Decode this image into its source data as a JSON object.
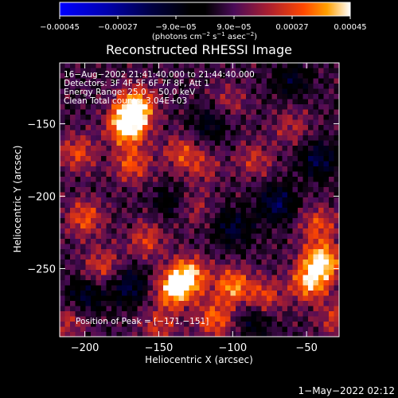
{
  "chart_data": {
    "type": "heatmap",
    "title": "Reconstructed RHESSI Image",
    "xlabel": "Heliocentric X (arcsec)",
    "ylabel": "Heliocentric Y (arcsec)",
    "xlim": [
      -217,
      -28
    ],
    "ylim": [
      -297,
      -108
    ],
    "x_ticks": [
      -200,
      -150,
      -100,
      -50
    ],
    "x_tick_labels": [
      "−200",
      "−150",
      "−100",
      "−50"
    ],
    "y_ticks": [
      -150,
      -200,
      -250
    ],
    "y_tick_labels": [
      "−150",
      "−200",
      "−250"
    ],
    "colorbar": {
      "range": [
        -0.00045,
        0.00045
      ],
      "tick_values": [
        -0.00045,
        -0.00027,
        -9e-05,
        9e-05,
        0.00027,
        0.00045
      ],
      "tick_labels": [
        "−0.00045",
        "−0.00027",
        "−9.0e−05",
        "9.0e−05",
        "0.00027",
        "0.00045"
      ],
      "units_prefix": "(photons cm",
      "units_exp1": "−2",
      "units_mid": " s",
      "units_exp2": "−1",
      "units_mid2": " asec",
      "units_exp3": "−2",
      "units_suffix": ")"
    },
    "annotations": [
      "16−Aug−2002 21:41:40.000 to 21:44:40.000",
      "Detectors: 3F 4F 5F 6F 7F 8F, Att 1",
      "Energy Range: 25.0 − 50.0 keV",
      "Clean     Total counts: 3.04E+03"
    ],
    "peak_label": "Position of Peak = [−171,−151]",
    "peak": [
      -171,
      -151
    ],
    "hot_spots": [
      {
        "x": -171,
        "y": -151,
        "amp": 0.00045
      },
      {
        "x": -165,
        "y": -137,
        "amp": 0.00032
      },
      {
        "x": -168,
        "y": -178,
        "amp": 0.00022
      },
      {
        "x": -205,
        "y": -170,
        "amp": 0.0002
      },
      {
        "x": -200,
        "y": -215,
        "amp": 0.00022
      },
      {
        "x": -188,
        "y": -248,
        "amp": 0.00018
      },
      {
        "x": -135,
        "y": -170,
        "amp": 0.00018
      },
      {
        "x": -128,
        "y": -208,
        "amp": 0.00014
      },
      {
        "x": -120,
        "y": -180,
        "amp": 0.00012
      },
      {
        "x": -85,
        "y": -175,
        "amp": 0.00015
      },
      {
        "x": -103,
        "y": -135,
        "amp": 0.00012
      },
      {
        "x": -60,
        "y": -152,
        "amp": 0.00013
      },
      {
        "x": -42,
        "y": -220,
        "amp": 0.0002
      },
      {
        "x": -40,
        "y": -245,
        "amp": 0.00038
      },
      {
        "x": -48,
        "y": -260,
        "amp": 0.0003
      },
      {
        "x": -130,
        "y": -255,
        "amp": 0.00034
      },
      {
        "x": -140,
        "y": -265,
        "amp": 0.00032
      },
      {
        "x": -100,
        "y": -262,
        "amp": 0.00028
      },
      {
        "x": -112,
        "y": -285,
        "amp": 0.00024
      },
      {
        "x": -78,
        "y": -270,
        "amp": 0.0002
      },
      {
        "x": -158,
        "y": -230,
        "amp": 0.00018
      },
      {
        "x": -150,
        "y": -290,
        "amp": 0.00016
      },
      {
        "x": -210,
        "y": -285,
        "amp": 0.00015
      },
      {
        "x": -30,
        "y": -285,
        "amp": 0.00016
      }
    ],
    "cold_spots": [
      {
        "x": -70,
        "y": -205,
        "amp": -0.00022
      },
      {
        "x": -100,
        "y": -222,
        "amp": -0.00018
      },
      {
        "x": -42,
        "y": -175,
        "amp": -0.0002
      },
      {
        "x": -200,
        "y": -270,
        "amp": -0.00018
      },
      {
        "x": -170,
        "y": -262,
        "amp": -0.0002
      },
      {
        "x": -115,
        "y": -150,
        "amp": -0.00015
      },
      {
        "x": -140,
        "y": -205,
        "amp": -0.00014
      },
      {
        "x": -60,
        "y": -120,
        "amp": -0.00014
      },
      {
        "x": -85,
        "y": -285,
        "amp": -0.00014
      }
    ]
  },
  "timestamp": "1−May−2022 02:12"
}
